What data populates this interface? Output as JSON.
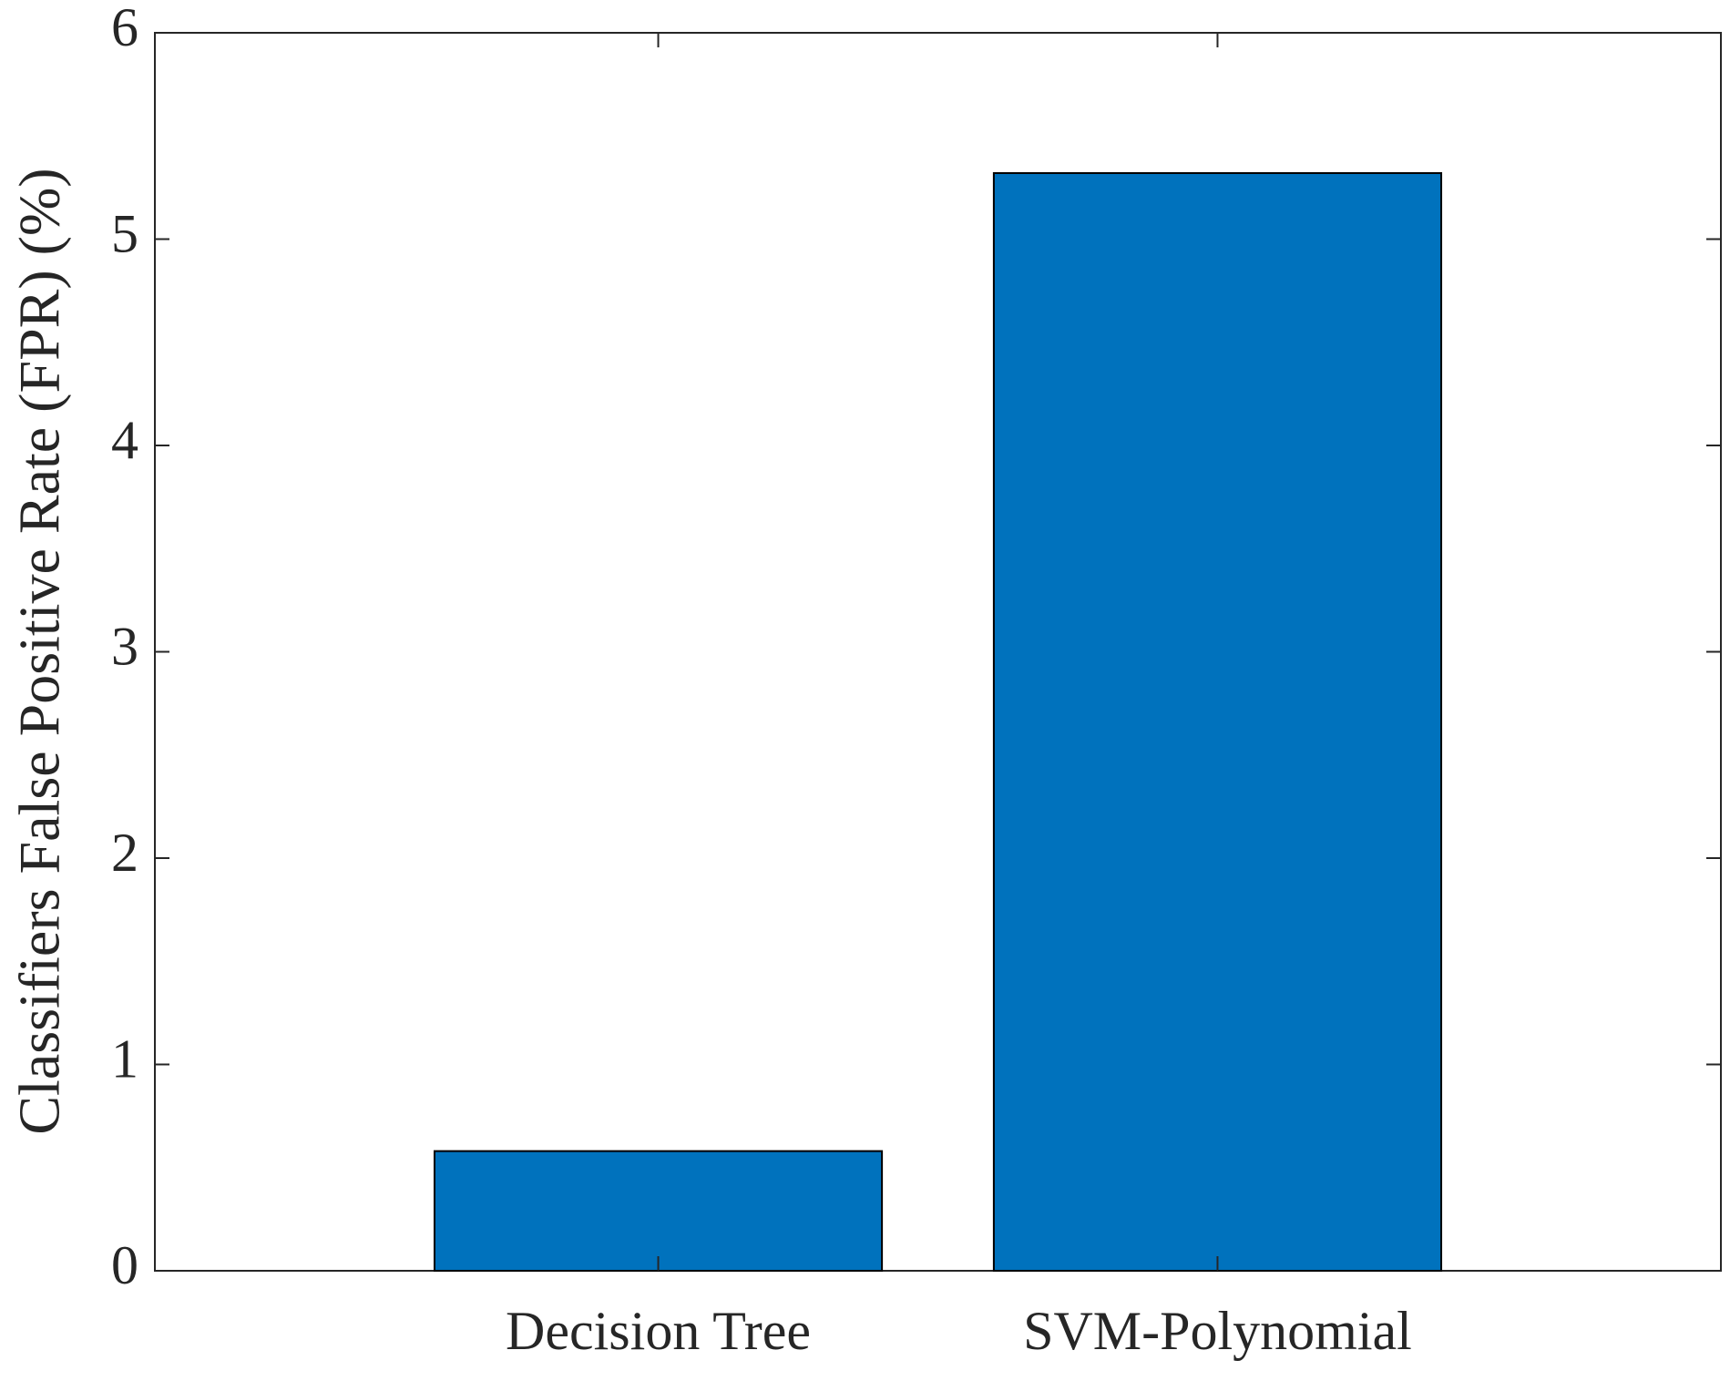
{
  "chart_data": {
    "type": "bar",
    "y_label": "Classifiers False Positive Rate (FPR) (%)",
    "categories": [
      "Decision Tree",
      "SVM-Polynomial"
    ],
    "values": [
      0.58,
      5.32
    ],
    "color": "#0072bd",
    "ylim": [
      0,
      6
    ],
    "yticks": [
      0,
      1,
      2,
      3,
      4,
      5,
      6
    ],
    "grid": false
  }
}
